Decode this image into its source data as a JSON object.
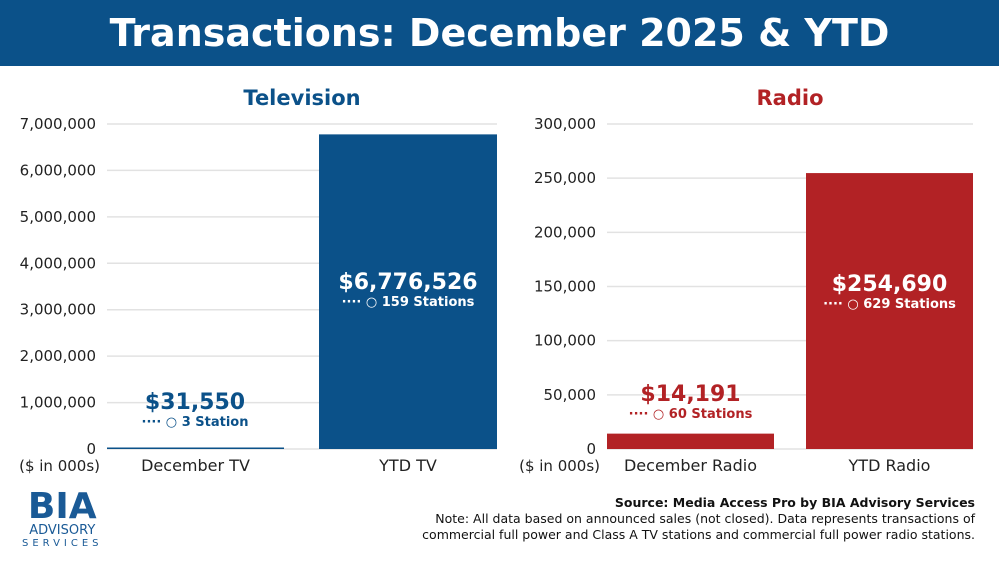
{
  "title": "Transactions: December 2025 & YTD",
  "colors": {
    "tv": "#0b5189",
    "radio": "#b22225"
  },
  "chart_data": [
    {
      "type": "bar",
      "title": "Television",
      "ylabel": "($ in 000s)",
      "ylim": [
        0,
        7000000
      ],
      "yticks": [
        "0",
        "1,000,000",
        "2,000,000",
        "3,000,000",
        "4,000,000",
        "5,000,000",
        "6,000,000",
        "7,000,000"
      ],
      "categories": [
        "December TV",
        "YTD TV"
      ],
      "values": [
        31550,
        6776526
      ],
      "data_labels": [
        "$31,550",
        "$6,776,526"
      ],
      "station_labels": [
        "3 Station",
        "159 Stations"
      ],
      "grid": true
    },
    {
      "type": "bar",
      "title": "Radio",
      "ylabel": "($ in 000s)",
      "ylim": [
        0,
        300000
      ],
      "yticks": [
        "0",
        "50,000",
        "100,000",
        "150,000",
        "200,000",
        "250,000",
        "300,000"
      ],
      "categories": [
        "December Radio",
        "YTD Radio"
      ],
      "values": [
        14191,
        254690
      ],
      "data_labels": [
        "$14,191",
        "$254,690"
      ],
      "station_labels": [
        "60 Stations",
        "629 Stations"
      ],
      "grid": true
    }
  ],
  "source": "Source: Media Access Pro by BIA Advisory Services",
  "note1": "Note: All data based on announced sales (not closed).  Data represents transactions of",
  "note2": "commercial full power and Class A TV stations and commercial full power radio stations.",
  "logo": {
    "main": "BIA",
    "line1": "ADVISORY",
    "line2": "SERVICES"
  }
}
